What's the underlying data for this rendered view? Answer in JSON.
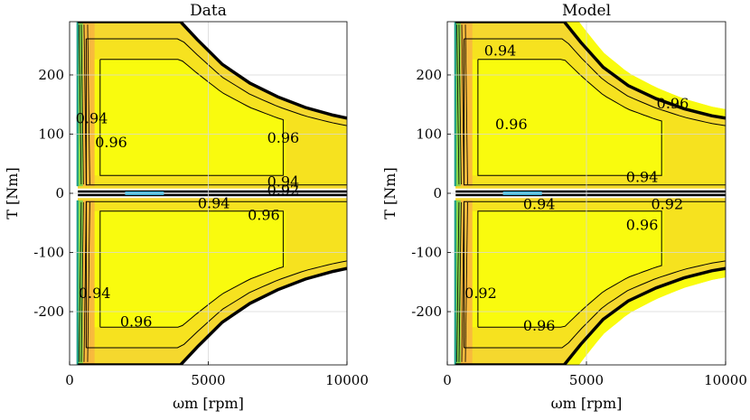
{
  "chart_data": [
    {
      "type": "contour",
      "title": "Data",
      "xlabel": "ωm [rpm]",
      "ylabel": "T [Nm]",
      "xlim": [
        0,
        10000
      ],
      "ylim": [
        -290,
        290
      ],
      "xticks": [
        0,
        5000,
        10000
      ],
      "yticks": [
        200,
        100,
        0,
        -100,
        -200
      ],
      "xtick_labels": [
        "0",
        "5000",
        "10000"
      ],
      "ytick_labels": [
        "200",
        "100",
        "0",
        "-100",
        "-200"
      ],
      "grid": true,
      "levels": [
        0.8,
        0.9,
        0.92,
        0.94,
        0.96
      ],
      "contour_labels": [
        {
          "text": "0.96",
          "x": 7700,
          "y": 92
        },
        {
          "text": "0.96",
          "x": 1500,
          "y": 85
        },
        {
          "text": "0.94",
          "x": 800,
          "y": 125
        },
        {
          "text": "0.94",
          "x": 7700,
          "y": 18
        },
        {
          "text": "0.92",
          "x": 7700,
          "y": 4
        },
        {
          "text": "0.94",
          "x": 5200,
          "y": -18
        },
        {
          "text": "0.96",
          "x": 7000,
          "y": -38
        },
        {
          "text": "0.96",
          "x": 2400,
          "y": -218
        },
        {
          "text": "0.94",
          "x": 900,
          "y": -170
        }
      ],
      "torque_envelope": {
        "x": [
          300,
          4000,
          4600,
          5500,
          6500,
          7500,
          8500,
          9500,
          10000
        ],
        "upper": [
          290,
          290,
          260,
          218,
          186,
          163,
          145,
          132,
          127
        ],
        "lower": [
          -290,
          -290,
          -260,
          -218,
          -186,
          -163,
          -145,
          -132,
          -127
        ]
      }
    },
    {
      "type": "contour",
      "title": "Model",
      "xlabel": "ωm [rpm]",
      "ylabel": "T [Nm]",
      "xlim": [
        0,
        10000
      ],
      "ylim": [
        -290,
        290
      ],
      "xticks": [
        0,
        5000,
        10000
      ],
      "yticks": [
        200,
        100,
        0,
        -100,
        -200
      ],
      "xtick_labels": [
        "0",
        "5000",
        "10000"
      ],
      "ytick_labels": [
        "200",
        "100",
        "0",
        "-100",
        "-200"
      ],
      "grid": true,
      "levels": [
        0.8,
        0.9,
        0.92,
        0.94,
        0.96
      ],
      "contour_labels": [
        {
          "text": "0.94",
          "x": 1900,
          "y": 240
        },
        {
          "text": "0.96",
          "x": 8100,
          "y": 150
        },
        {
          "text": "0.96",
          "x": 2300,
          "y": 115
        },
        {
          "text": "0.94",
          "x": 7000,
          "y": 26
        },
        {
          "text": "0.94",
          "x": 3300,
          "y": -20
        },
        {
          "text": "0.92",
          "x": 7900,
          "y": -20
        },
        {
          "text": "0.96",
          "x": 7000,
          "y": -55
        },
        {
          "text": "0.92",
          "x": 1200,
          "y": -170
        },
        {
          "text": "0.96",
          "x": 3300,
          "y": -225
        }
      ],
      "torque_envelope": {
        "x": [
          300,
          4200,
          4800,
          5600,
          6500,
          7500,
          8500,
          9500,
          10000
        ],
        "upper": [
          290,
          290,
          255,
          213,
          182,
          160,
          143,
          131,
          127
        ],
        "lower": [
          -290,
          -290,
          -255,
          -213,
          -182,
          -160,
          -143,
          -131,
          -127
        ]
      }
    }
  ],
  "colors": {
    "yellow": "#f9fb0e",
    "gold": "#f5d82e",
    "orange": "#f8ba3d",
    "green": "#1f9e89",
    "cyan": "#35b7e0",
    "contour": "#000000",
    "grid": "#d9d9d9"
  }
}
